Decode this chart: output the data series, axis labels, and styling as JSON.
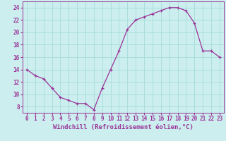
{
  "x": [
    0,
    1,
    2,
    3,
    4,
    5,
    6,
    7,
    8,
    9,
    10,
    11,
    12,
    13,
    14,
    15,
    16,
    17,
    18,
    19,
    20,
    21,
    22,
    23
  ],
  "y": [
    14.0,
    13.0,
    12.5,
    11.0,
    9.5,
    9.0,
    8.5,
    8.5,
    7.5,
    11.0,
    14.0,
    17.0,
    20.5,
    22.0,
    22.5,
    23.0,
    23.5,
    24.0,
    24.0,
    23.5,
    21.5,
    17.0,
    17.0,
    16.0
  ],
  "line_color": "#993399",
  "marker": "+",
  "marker_size": 3,
  "bg_color": "#cceeee",
  "grid_color": "#aadddd",
  "xlabel": "Windchill (Refroidissement éolien,°C)",
  "xlabel_fontsize": 6.5,
  "tick_fontsize": 5.5,
  "ylim": [
    7,
    25
  ],
  "xlim": [
    -0.5,
    23.5
  ],
  "yticks": [
    8,
    10,
    12,
    14,
    16,
    18,
    20,
    22,
    24
  ],
  "xticks": [
    0,
    1,
    2,
    3,
    4,
    5,
    6,
    7,
    8,
    9,
    10,
    11,
    12,
    13,
    14,
    15,
    16,
    17,
    18,
    19,
    20,
    21,
    22,
    23
  ]
}
